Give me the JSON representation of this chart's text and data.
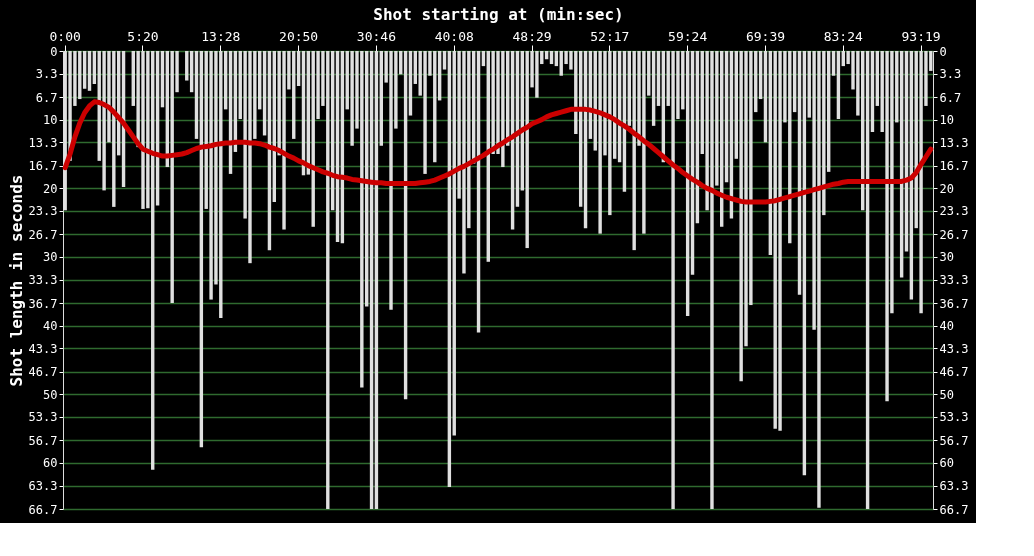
{
  "chart_data": {
    "type": "bar",
    "xlabel": "Shot starting at (min:sec)",
    "ylabel": "Shot length in seconds",
    "categories": [
      "0:00",
      null,
      null,
      null,
      null,
      null,
      null,
      null,
      null,
      null,
      null,
      null,
      null,
      null,
      null,
      null,
      "5:20",
      null,
      null,
      null,
      null,
      null,
      null,
      null,
      null,
      null,
      null,
      null,
      null,
      null,
      null,
      null,
      "13:28",
      null,
      null,
      null,
      null,
      null,
      null,
      null,
      null,
      null,
      null,
      null,
      null,
      null,
      null,
      null,
      "20:50",
      null,
      null,
      null,
      null,
      null,
      null,
      null,
      null,
      null,
      null,
      null,
      null,
      null,
      null,
      null,
      "30:46",
      null,
      null,
      null,
      null,
      null,
      null,
      null,
      null,
      null,
      null,
      null,
      null,
      null,
      null,
      null,
      "40:08",
      null,
      null,
      null,
      null,
      null,
      null,
      null,
      null,
      null,
      null,
      null,
      null,
      null,
      null,
      null,
      "48:29",
      null,
      null,
      null,
      null,
      null,
      null,
      null,
      null,
      null,
      null,
      null,
      null,
      null,
      null,
      null,
      "52:17",
      null,
      null,
      null,
      null,
      null,
      null,
      null,
      null,
      null,
      null,
      null,
      null,
      null,
      null,
      null,
      "59:24",
      null,
      null,
      null,
      null,
      null,
      null,
      null,
      null,
      null,
      null,
      null,
      null,
      null,
      null,
      null,
      "69:39",
      null,
      null,
      null,
      null,
      null,
      null,
      null,
      null,
      null,
      null,
      null,
      null,
      null,
      null,
      null,
      "83:24",
      null,
      null,
      null,
      null,
      null,
      null,
      null,
      null,
      null,
      null,
      null,
      null,
      null,
      null,
      null,
      "93:19",
      null,
      null
    ],
    "series": [
      {
        "color": "#e0e0e0",
        "values": [
          23.2,
          16,
          8,
          7,
          5.5,
          5.8,
          4.8,
          16,
          20.3,
          13.3,
          22.7,
          15.2,
          19.8,
          null,
          8,
          14,
          23,
          22.9,
          61,
          22.5,
          8.2,
          16.9,
          36.7,
          6,
          null,
          4.3,
          6,
          12.8,
          57.7,
          23,
          36.2,
          34,
          38.9,
          8.5,
          17.9,
          14.7,
          9.9,
          24.4,
          30.9,
          12.8,
          8.5,
          12.3,
          29,
          22,
          15.2,
          26,
          5.6,
          12.8,
          5.1,
          18.1,
          18,
          25.6,
          9.9,
          8,
          66.7,
          23.2,
          27.8,
          28,
          8.5,
          13.8,
          11.3,
          49,
          37.2,
          66.7,
          66.7,
          13.8,
          4.6,
          37.7,
          11.3,
          3.4,
          50.7,
          9.4,
          4.8,
          6.5,
          17.9,
          3.6,
          16.2,
          7.2,
          2.7,
          63.5,
          56,
          21.5,
          32.4,
          25.8,
          16.4,
          41,
          2.2,
          30.7,
          15,
          15,
          16.9,
          13.8,
          26,
          22.7,
          20.3,
          28.7,
          5.3,
          6.8,
          1.9,
          1.2,
          1.9,
          2.2,
          3.6,
          1.9,
          2.7,
          12.1,
          22.7,
          25.8,
          12.8,
          14.5,
          26.6,
          15.2,
          23.9,
          15.7,
          16.2,
          20.5,
          10.9,
          29,
          13.8,
          26.6,
          6.5,
          10.9,
          8,
          16.2,
          8,
          66.7,
          9.9,
          8.5,
          38.6,
          32.6,
          25.1,
          15,
          23.2,
          66.7,
          19.6,
          25.6,
          19.1,
          24.4,
          15.7,
          48.1,
          43,
          37,
          8.9,
          7,
          13.3,
          29.7,
          55,
          55.3,
          10.4,
          28,
          8.9,
          35.5,
          61.8,
          9.7,
          40.6,
          66.5,
          23.9,
          17.6,
          3.6,
          9.9,
          2.2,
          1.9,
          5.6,
          9.4,
          23.2,
          66.7,
          11.8,
          8,
          11.8,
          51,
          38.2,
          10.4,
          33,
          29.2,
          36.2,
          25.8,
          38.2,
          8,
          2.9
        ]
      },
      {
        "type": "line",
        "color": "#cc0000",
        "values": [
          17,
          15,
          12.5,
          10.5,
          9,
          8,
          7.4,
          7.5,
          7.8,
          8.2,
          8.9,
          9.7,
          10.5,
          11.5,
          12.5,
          13.5,
          14.3,
          14.6,
          14.9,
          15.1,
          15.3,
          15.3,
          15.2,
          15.1,
          15,
          14.8,
          14.5,
          14.2,
          14,
          13.9,
          13.8,
          13.6,
          13.5,
          13.4,
          13.4,
          13.3,
          13.3,
          13.3,
          13.4,
          13.4,
          13.5,
          13.7,
          14,
          14.2,
          14.5,
          14.9,
          15.3,
          15.6,
          16,
          16.3,
          16.7,
          17,
          17.3,
          17.6,
          17.8,
          18.1,
          18.3,
          18.4,
          18.5,
          18.7,
          18.8,
          18.9,
          19,
          19.1,
          19.2,
          19.2,
          19.3,
          19.3,
          19.3,
          19.3,
          19.3,
          19.3,
          19.3,
          19.2,
          19.1,
          19,
          18.8,
          18.5,
          18.2,
          17.9,
          17.5,
          17.1,
          16.8,
          16.4,
          16,
          15.6,
          15.2,
          14.7,
          14.3,
          13.8,
          13.4,
          12.9,
          12.5,
          12,
          11.5,
          11.1,
          10.6,
          10.3,
          10,
          9.6,
          9.3,
          9.1,
          8.9,
          8.7,
          8.5,
          8.5,
          8.5,
          8.5,
          8.6,
          8.8,
          9,
          9.3,
          9.6,
          10,
          10.5,
          10.9,
          11.4,
          12,
          12.5,
          13.1,
          13.6,
          14.2,
          14.8,
          15.4,
          16,
          16.6,
          17.1,
          17.7,
          18.2,
          18.7,
          19.1,
          19.6,
          20,
          20.3,
          20.7,
          21,
          21.3,
          21.5,
          21.7,
          21.9,
          22,
          22,
          22,
          22,
          22,
          21.9,
          21.8,
          21.6,
          21.4,
          21.2,
          21,
          20.8,
          20.6,
          20.4,
          20.2,
          20,
          19.8,
          19.6,
          19.4,
          19.3,
          19.1,
          19,
          19,
          19,
          19,
          19,
          19,
          19,
          19,
          19,
          19,
          19,
          19,
          18.8,
          18.5,
          17.7,
          16.5,
          15.4,
          14.3
        ]
      }
    ],
    "ylim": [
      66.7,
      0
    ],
    "marker": "none",
    "yticks": [
      0,
      3.3,
      6.7,
      10,
      13.3,
      16.7,
      20,
      23.3,
      26.7,
      30,
      33.3,
      36.7,
      40,
      43.3,
      46.7,
      50,
      53.3,
      56.7,
      60,
      63.3,
      66.7
    ],
    "y2lim": [
      66.7,
      0
    ],
    "y2ticks": [
      0,
      3.3,
      6.7,
      10,
      13.3,
      16.7,
      20,
      23.3,
      26.7,
      30,
      33.3,
      36.7,
      40,
      43.3,
      46.7,
      50,
      53.3,
      56.7,
      60,
      63.3,
      66.7
    ],
    "grid": "y",
    "line_style": "solid"
  }
}
